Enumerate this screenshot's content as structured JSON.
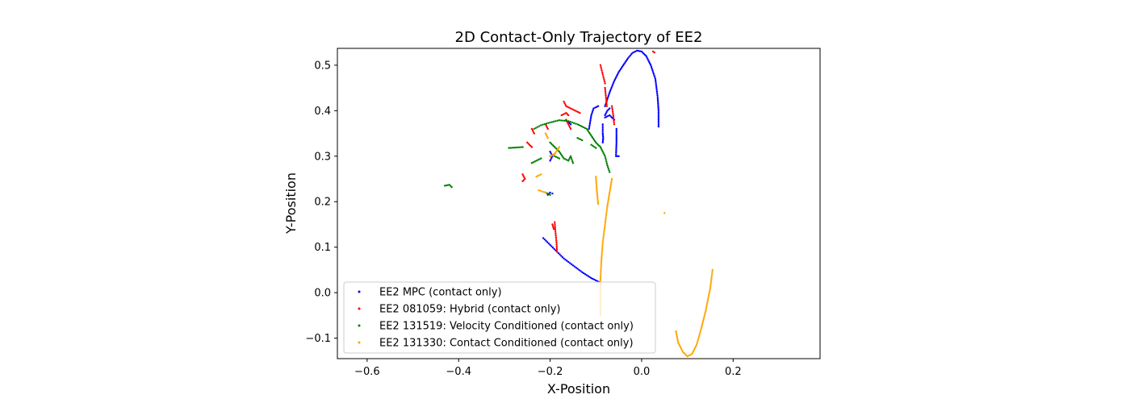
{
  "chart_data": {
    "type": "scatter",
    "title": "2D Contact-Only Trajectory of EE2",
    "xlabel": "X-Position",
    "ylabel": "Y-Position",
    "xlim": [
      -0.665,
      0.39
    ],
    "ylim": [
      -0.145,
      0.537
    ],
    "xticks": [
      -0.6,
      -0.4,
      -0.2,
      0.0,
      0.2
    ],
    "xtick_labels": [
      "−0.6",
      "−0.4",
      "−0.2",
      "0.0",
      "0.2"
    ],
    "yticks": [
      -0.1,
      0.0,
      0.1,
      0.2,
      0.3,
      0.4,
      0.5
    ],
    "ytick_labels": [
      "−0.1",
      "0.0",
      "0.1",
      "0.2",
      "0.3",
      "0.4",
      "0.5"
    ],
    "grid": false,
    "legend_position": "lower-left",
    "series": [
      {
        "name": "EE2 MPC (contact only)",
        "color": "#0000ff",
        "segments": [
          [
            [
              -0.08,
              0.41
            ],
            [
              -0.07,
              0.44
            ],
            [
              -0.06,
              0.465
            ],
            [
              -0.05,
              0.485
            ],
            [
              -0.04,
              0.5
            ],
            [
              -0.03,
              0.515
            ],
            [
              -0.02,
              0.527
            ],
            [
              -0.01,
              0.532
            ],
            [
              0.0,
              0.53
            ],
            [
              0.01,
              0.52
            ],
            [
              0.02,
              0.5
            ],
            [
              0.03,
              0.47
            ],
            [
              0.035,
              0.43
            ],
            [
              0.037,
              0.4
            ],
            [
              0.037,
              0.365
            ]
          ],
          [
            [
              -0.215,
              0.12
            ],
            [
              -0.2,
              0.105
            ],
            [
              -0.185,
              0.09
            ],
            [
              -0.17,
              0.075
            ],
            [
              -0.15,
              0.06
            ],
            [
              -0.13,
              0.045
            ],
            [
              -0.11,
              0.032
            ],
            [
              -0.09,
              0.022
            ]
          ],
          [
            [
              -0.115,
              0.36
            ],
            [
              -0.11,
              0.39
            ],
            [
              -0.105,
              0.405
            ],
            [
              -0.095,
              0.41
            ]
          ],
          [
            [
              -0.08,
              0.39
            ],
            [
              -0.075,
              0.4
            ],
            [
              -0.07,
              0.405
            ]
          ],
          [
            [
              -0.08,
              0.385
            ],
            [
              -0.07,
              0.39
            ],
            [
              -0.06,
              0.38
            ]
          ],
          [
            [
              -0.085,
              0.37
            ],
            [
              -0.085,
              0.35
            ],
            [
              -0.084,
              0.34
            ],
            [
              -0.085,
              0.33
            ]
          ],
          [
            [
              -0.055,
              0.36
            ],
            [
              -0.055,
              0.33
            ],
            [
              -0.056,
              0.3
            ],
            [
              -0.05,
              0.3
            ]
          ],
          [
            [
              -0.2,
              0.31
            ],
            [
              -0.195,
              0.3
            ],
            [
              -0.2,
              0.29
            ]
          ],
          [
            [
              -0.205,
              0.215
            ],
            [
              -0.2,
              0.22
            ],
            [
              -0.195,
              0.218
            ]
          ],
          [
            [
              -0.16,
              0.375
            ],
            [
              -0.155,
              0.37
            ]
          ]
        ]
      },
      {
        "name": "EE2 081059: Hybrid (contact only)",
        "color": "#ff0000",
        "segments": [
          [
            [
              -0.09,
              0.5
            ],
            [
              -0.085,
              0.48
            ],
            [
              -0.08,
              0.46
            ]
          ],
          [
            [
              -0.08,
              0.45
            ],
            [
              -0.078,
              0.43
            ],
            [
              -0.076,
              0.41
            ]
          ],
          [
            [
              -0.17,
              0.42
            ],
            [
              -0.165,
              0.41
            ],
            [
              -0.155,
              0.405
            ],
            [
              -0.145,
              0.4
            ],
            [
              -0.135,
              0.395
            ]
          ],
          [
            [
              -0.175,
              0.39
            ],
            [
              -0.165,
              0.395
            ],
            [
              -0.16,
              0.39
            ]
          ],
          [
            [
              -0.165,
              0.38
            ],
            [
              -0.16,
              0.37
            ],
            [
              -0.155,
              0.36
            ]
          ],
          [
            [
              -0.19,
              0.155
            ],
            [
              -0.188,
              0.13
            ],
            [
              -0.186,
              0.11
            ],
            [
              -0.185,
              0.09
            ]
          ],
          [
            [
              -0.195,
              0.15
            ],
            [
              -0.192,
              0.14
            ]
          ],
          [
            [
              -0.25,
              0.33
            ],
            [
              -0.245,
              0.325
            ],
            [
              -0.24,
              0.32
            ]
          ],
          [
            [
              -0.26,
              0.26
            ],
            [
              -0.255,
              0.25
            ],
            [
              -0.26,
              0.245
            ]
          ],
          [
            [
              -0.24,
              0.36
            ],
            [
              -0.235,
              0.35
            ]
          ],
          [
            [
              -0.21,
              0.37
            ],
            [
              -0.205,
              0.36
            ]
          ],
          [
            [
              -0.2,
              0.3
            ],
            [
              -0.19,
              0.305
            ]
          ],
          [
            [
              -0.065,
              0.41
            ],
            [
              -0.062,
              0.39
            ],
            [
              -0.06,
              0.37
            ]
          ],
          [
            [
              0.025,
              0.53
            ],
            [
              0.028,
              0.528
            ]
          ]
        ]
      },
      {
        "name": "EE2 131519: Velocity Conditioned (contact only)",
        "color": "#008000",
        "segments": [
          [
            [
              -0.29,
              0.318
            ],
            [
              -0.275,
              0.319
            ],
            [
              -0.26,
              0.32
            ]
          ],
          [
            [
              -0.24,
              0.285
            ],
            [
              -0.23,
              0.29
            ],
            [
              -0.22,
              0.295
            ]
          ],
          [
            [
              -0.235,
              0.36
            ],
            [
              -0.22,
              0.368
            ],
            [
              -0.2,
              0.374
            ],
            [
              -0.18,
              0.379
            ],
            [
              -0.16,
              0.377
            ],
            [
              -0.14,
              0.37
            ],
            [
              -0.12,
              0.36
            ],
            [
              -0.11,
              0.345
            ],
            [
              -0.1,
              0.33
            ],
            [
              -0.09,
              0.32
            ],
            [
              -0.085,
              0.31
            ],
            [
              -0.08,
              0.3
            ],
            [
              -0.075,
              0.28
            ],
            [
              -0.07,
              0.265
            ]
          ],
          [
            [
              -0.43,
              0.235
            ],
            [
              -0.42,
              0.237
            ],
            [
              -0.415,
              0.232
            ]
          ],
          [
            [
              -0.2,
              0.33
            ],
            [
              -0.19,
              0.32
            ],
            [
              -0.18,
              0.31
            ],
            [
              -0.17,
              0.295
            ],
            [
              -0.16,
              0.29
            ],
            [
              -0.155,
              0.3
            ],
            [
              -0.15,
              0.285
            ]
          ],
          [
            [
              -0.21,
              0.22
            ],
            [
              -0.2,
              0.215
            ]
          ],
          [
            [
              -0.11,
              0.325
            ],
            [
              -0.1,
              0.318
            ]
          ],
          [
            [
              -0.14,
              0.34
            ],
            [
              -0.13,
              0.335
            ]
          ],
          [
            [
              -0.19,
              0.3
            ],
            [
              -0.18,
              0.295
            ]
          ]
        ]
      },
      {
        "name": "EE2 131330: Contact Conditioned (contact only)",
        "color": "#ffa500",
        "segments": [
          [
            [
              -0.065,
              0.25
            ],
            [
              -0.07,
              0.22
            ],
            [
              -0.075,
              0.19
            ],
            [
              -0.08,
              0.15
            ],
            [
              -0.085,
              0.11
            ],
            [
              -0.088,
              0.07
            ],
            [
              -0.09,
              0.03
            ],
            [
              -0.09,
              0.0
            ],
            [
              -0.09,
              -0.03
            ],
            [
              -0.09,
              -0.05
            ]
          ],
          [
            [
              0.075,
              -0.085
            ],
            [
              0.08,
              -0.11
            ],
            [
              0.09,
              -0.13
            ],
            [
              0.1,
              -0.14
            ],
            [
              0.11,
              -0.135
            ],
            [
              0.12,
              -0.115
            ],
            [
              0.13,
              -0.08
            ],
            [
              0.14,
              -0.04
            ],
            [
              0.15,
              0.01
            ],
            [
              0.155,
              0.05
            ]
          ],
          [
            [
              -0.1,
              0.255
            ],
            [
              -0.098,
              0.225
            ],
            [
              -0.095,
              0.195
            ]
          ],
          [
            [
              -0.23,
              0.255
            ],
            [
              -0.22,
              0.26
            ]
          ],
          [
            [
              -0.225,
              0.225
            ],
            [
              -0.21,
              0.22
            ]
          ],
          [
            [
              -0.2,
              0.3
            ],
            [
              -0.19,
              0.305
            ],
            [
              -0.18,
              0.32
            ]
          ],
          [
            [
              -0.21,
              0.35
            ],
            [
              -0.205,
              0.34
            ]
          ],
          [
            [
              0.05,
              0.175
            ]
          ]
        ]
      }
    ]
  }
}
